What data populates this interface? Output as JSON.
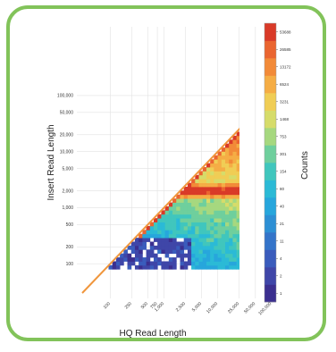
{
  "chart_data": {
    "type": "heatmap",
    "title": "",
    "xlabel": "HQ Read Length",
    "ylabel": "Insert Read Length",
    "xscale": "log",
    "yscale": "log",
    "grid": true,
    "x_ticks": [
      "100",
      "250",
      "500",
      "750",
      "1,000",
      "2,500",
      "5,000",
      "10,000",
      "25,000",
      "50,000",
      "100,000"
    ],
    "y_ticks": [
      "100",
      "200",
      "500",
      "1,000",
      "2,000",
      "5,000",
      "10,000",
      "20,000",
      "50,000",
      "100,000"
    ],
    "colorbar": {
      "label": "Counts",
      "ticks": [
        "1",
        "2",
        "4",
        "11",
        "21",
        "40",
        "80",
        "154",
        "301",
        "753",
        "1468",
        "3231",
        "6524",
        "13172",
        "26585",
        "53688"
      ],
      "colors": [
        "#3b2f8f",
        "#3f46a8",
        "#3a5cbc",
        "#3474c9",
        "#2d8fd4",
        "#27a6dc",
        "#2bbad6",
        "#40c6bd",
        "#6fcf9d",
        "#a6d87f",
        "#d6dc6a",
        "#f0cd55",
        "#f5ad45",
        "#f28a38",
        "#ea6530",
        "#d93a28"
      ]
    },
    "diagonal_line": {
      "from": [
        30,
        30
      ],
      "to": [
        100000,
        100000
      ]
    },
    "dense_band": {
      "y": 1900,
      "x_range": [
        800,
        50000
      ]
    }
  }
}
